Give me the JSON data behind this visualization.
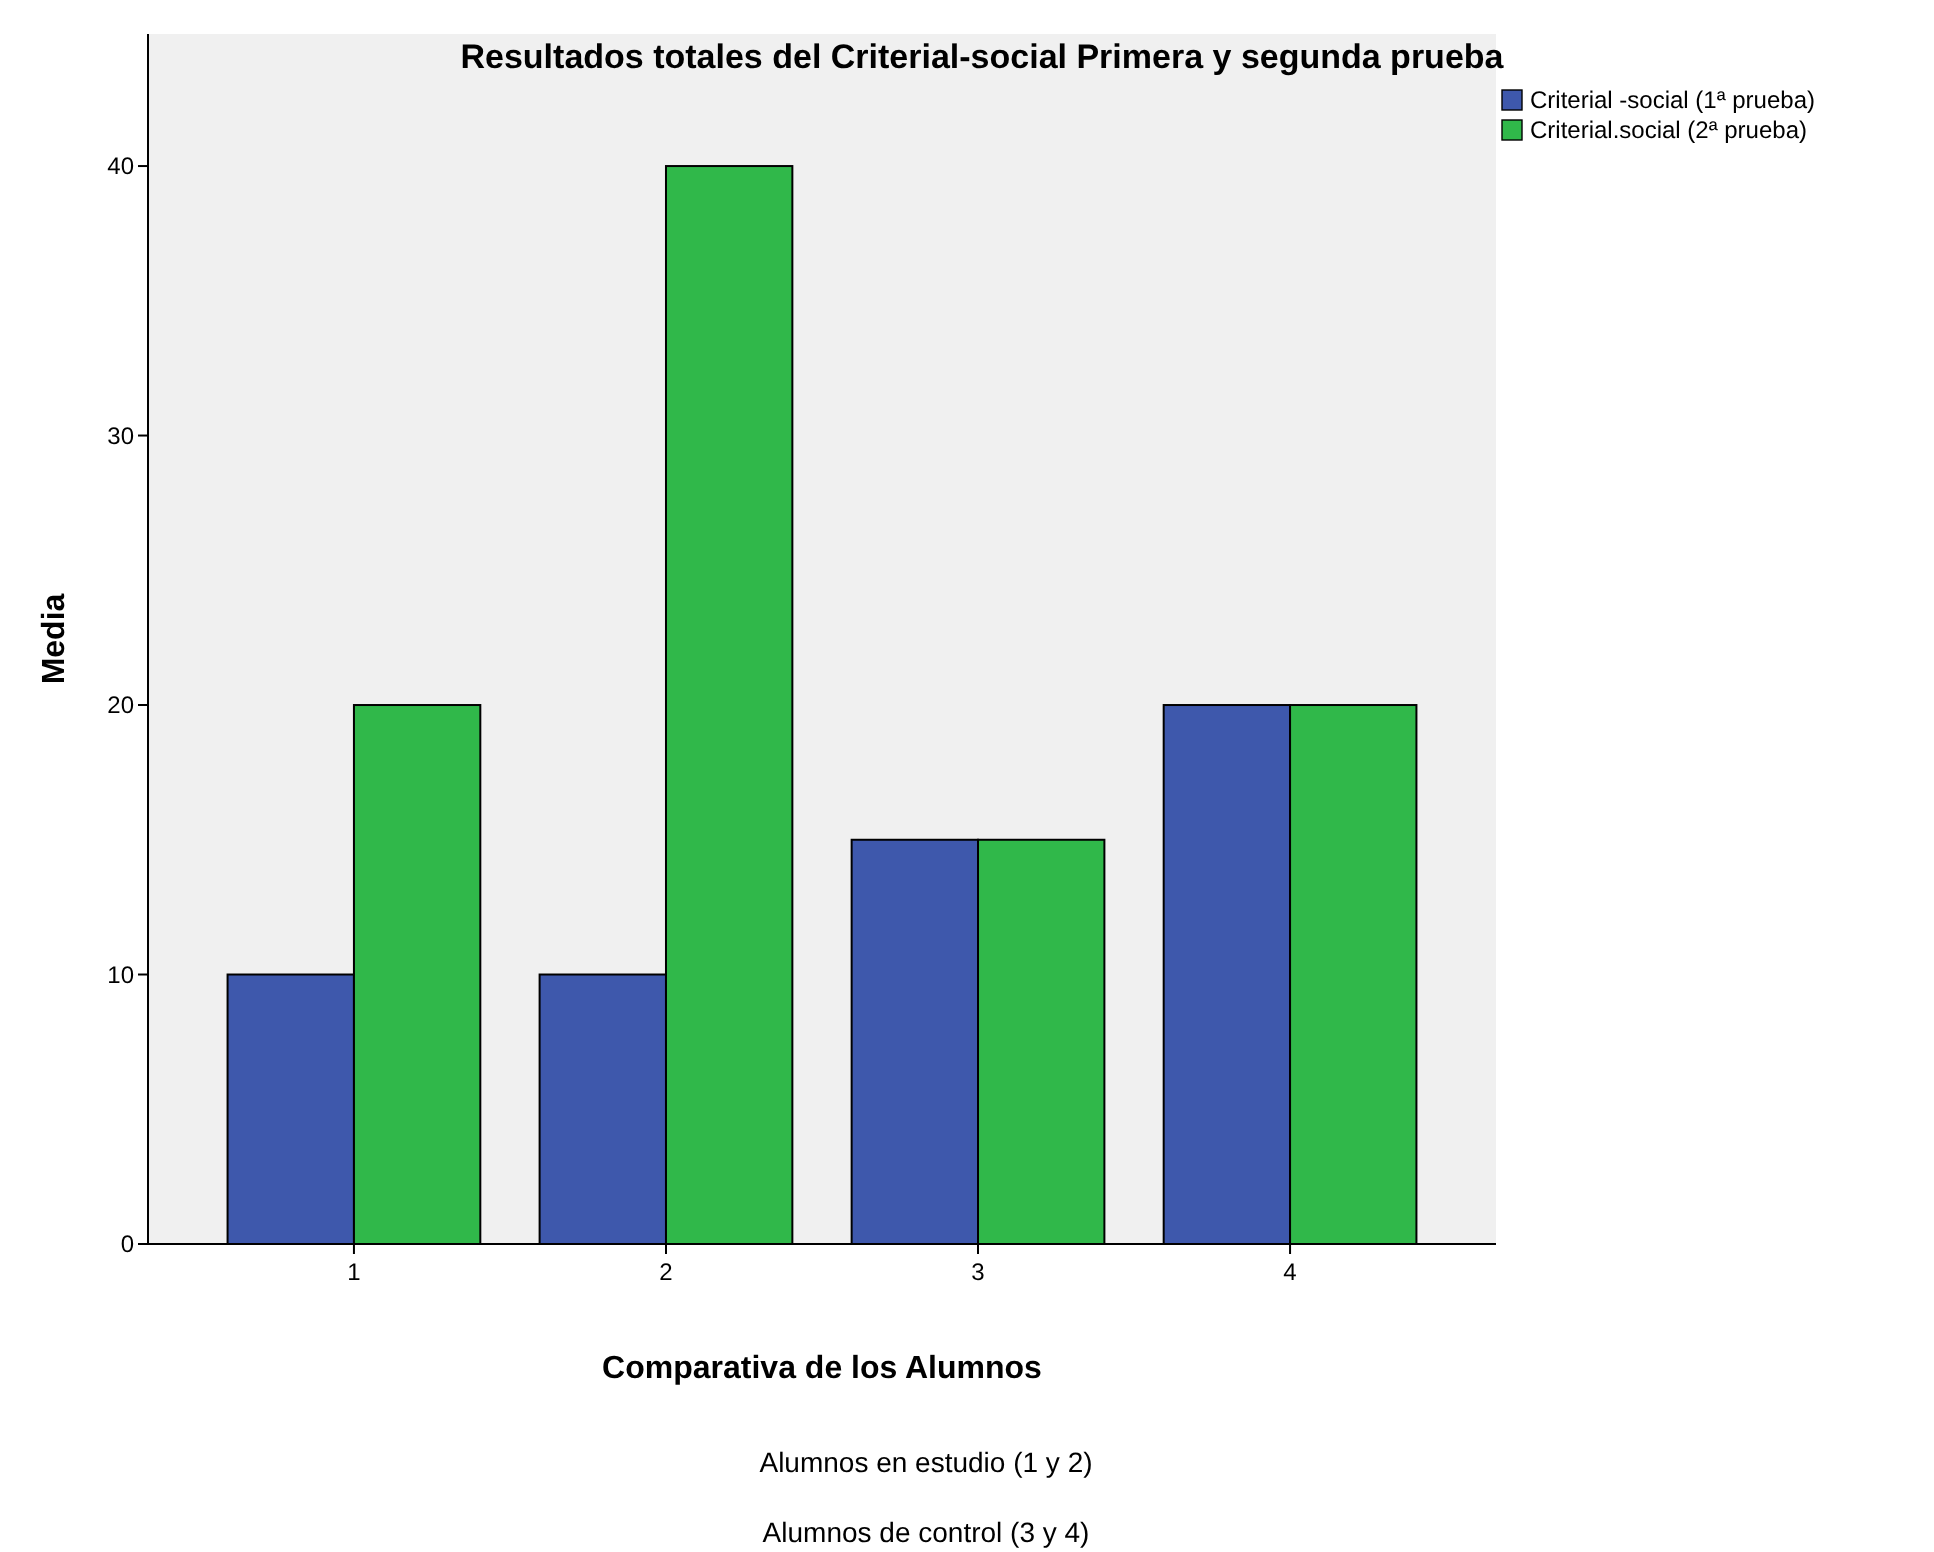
{
  "chart_data": {
    "type": "bar",
    "title": "Resultados totales del Criterial-social Primera y segunda prueba",
    "xlabel": "Comparativa de los Alumnos",
    "ylabel": "Media",
    "categories": [
      "1",
      "2",
      "3",
      "4"
    ],
    "series": [
      {
        "name": "Criterial -social (1ª prueba)",
        "color": "#3e58ac",
        "values": [
          10,
          10,
          15,
          20
        ]
      },
      {
        "name": "Criterial.social (2ª prueba)",
        "color": "#30b84a",
        "values": [
          20,
          40,
          15,
          20
        ]
      }
    ],
    "ylim": [
      0,
      44.9
    ],
    "yticks": [
      0,
      10,
      20,
      30,
      40
    ],
    "grid": false,
    "legend": "top right",
    "annotations": [
      "Alumnos en estudio (1 y 2)",
      "Alumnos de control (3 y 4)"
    ]
  }
}
